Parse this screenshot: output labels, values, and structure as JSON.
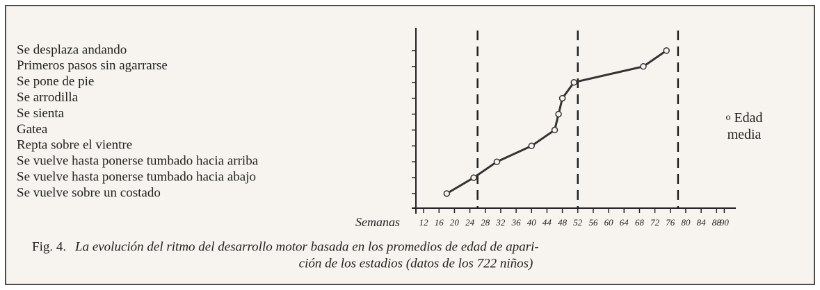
{
  "chart_data": {
    "type": "line",
    "categories": [
      "Se desplaza andando",
      "Primeros pasos sin agarrarse",
      "Se pone de pie",
      "Se arrodilla",
      "Se sienta",
      "Gatea",
      "Repta sobre el vientre",
      "Se vuelve hasta ponerse tumbado hacia arriba",
      "Se vuelve hasta ponerse tumbado hacia abajo",
      "Se vuelve sobre un costado"
    ],
    "series": [
      {
        "name": "Edad media",
        "color": "#333333",
        "values": [
          75,
          69,
          51,
          48,
          47,
          46,
          40,
          31,
          25,
          18
        ]
      }
    ],
    "x_label": "Semanas",
    "xlim": [
      10,
      93
    ],
    "xticks": [
      12,
      16,
      20,
      24,
      28,
      32,
      36,
      40,
      44,
      48,
      52,
      56,
      60,
      64,
      68,
      72,
      76,
      80,
      84,
      88,
      90
    ],
    "reference_lines": [
      26,
      52,
      78
    ],
    "figure_label": "Fig. 4.",
    "caption_lines": [
      "La evolución del ritmo del desarrollo motor basada en los promedios de edad de apari-",
      "ción de los estadios (datos de los 722 niños)"
    ]
  }
}
